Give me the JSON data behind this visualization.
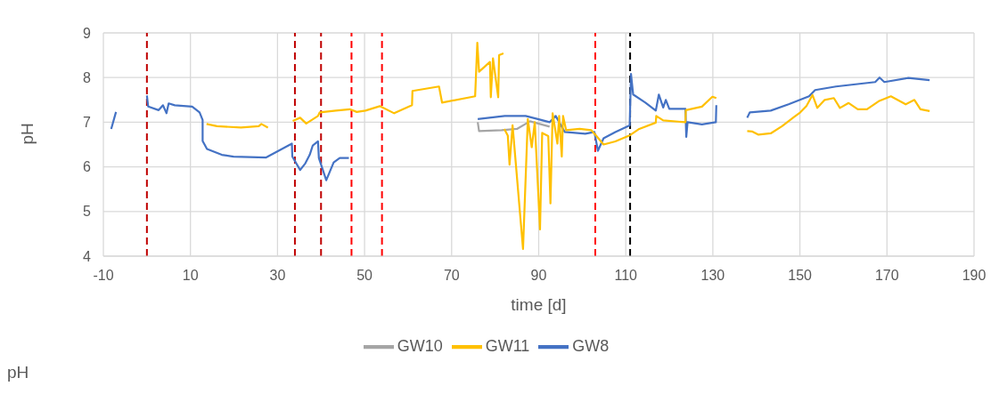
{
  "chart_data": {
    "type": "line",
    "xlabel": "time [d]",
    "ylabel": "pH",
    "xlim": [
      -10,
      190
    ],
    "xticks": [
      -10,
      10,
      30,
      50,
      70,
      90,
      110,
      130,
      150,
      170,
      190
    ],
    "ylim": [
      4,
      9
    ],
    "yticks": [
      4,
      5,
      6,
      7,
      8,
      9
    ],
    "grid": true,
    "legend": "bottom",
    "marker": "none",
    "line_style": "solid",
    "annotations": [
      "pH"
    ],
    "ref_lines": [
      {
        "axis": "x",
        "value": 0,
        "color": "#c00000",
        "line_style": "dashed"
      },
      {
        "axis": "x",
        "value": 34,
        "color": "#c00000",
        "line_style": "dashed"
      },
      {
        "axis": "x",
        "value": 40,
        "color": "#c00000",
        "line_style": "dashed"
      },
      {
        "axis": "x",
        "value": 47,
        "color": "#ff0000",
        "line_style": "dashed"
      },
      {
        "axis": "x",
        "value": 54,
        "color": "#ff0000",
        "line_style": "dashed"
      },
      {
        "axis": "x",
        "value": 103,
        "color": "#ff0000",
        "line_style": "dashed"
      },
      {
        "axis": "x",
        "value": 111,
        "color": "#000000",
        "line_style": "dashed"
      }
    ],
    "series": [
      {
        "name": "GW8",
        "color": "#4472c4",
        "x": [
          -8.2,
          -7.1,
          -4,
          0,
          0.3,
          2.7,
          3.7,
          4.5,
          5,
          6.4,
          10.4,
          12.1,
          12.8,
          12.8,
          13.8,
          17.2,
          19.9,
          27.4,
          33.3,
          33.4,
          35.2,
          36.4,
          37.4,
          38.1,
          39.3,
          39.5,
          41.2,
          42.9,
          44.3,
          46.4,
          60,
          76,
          82.2,
          87,
          89.8,
          92.5,
          93.9,
          96,
          100.7,
          102.8,
          103.6,
          104.9,
          107.6,
          110.9,
          111.2,
          111.7,
          114.5,
          116.9,
          117.6,
          118.6,
          119.2,
          120,
          123.7,
          123.9,
          124.2,
          127.5,
          130.7,
          130.8,
          134,
          137.9,
          138.5,
          143.3,
          147.4,
          152.1,
          153.5,
          158.3,
          167.3,
          168.3,
          169.4,
          174.9,
          179.8
        ],
        "values": [
          6.85,
          7.23,
          null,
          7.6,
          7.35,
          7.27,
          7.38,
          7.2,
          7.42,
          7.38,
          7.35,
          7.22,
          7.05,
          6.58,
          6.4,
          6.27,
          6.23,
          6.21,
          6.52,
          6.23,
          5.93,
          6.08,
          6.27,
          6.48,
          6.57,
          6.2,
          5.7,
          6.1,
          6.2,
          6.2,
          null,
          7.07,
          7.14,
          7.14,
          7.07,
          7,
          7.14,
          6.78,
          6.74,
          6.78,
          6.36,
          6.64,
          6.78,
          6.93,
          8.08,
          7.62,
          7.44,
          7.26,
          7.62,
          7.33,
          7.5,
          7.3,
          7.3,
          6.67,
          7,
          6.95,
          7,
          7.38,
          null,
          7.1,
          7.22,
          7.26,
          7.4,
          7.58,
          7.72,
          7.8,
          7.9,
          8,
          7.9,
          7.99,
          7.94
        ]
      },
      {
        "name": "GW10",
        "color": "#a5a5a5",
        "x": [
          76,
          76.3,
          81.5,
          85,
          88,
          92.5
        ],
        "values": [
          7,
          6.8,
          6.82,
          6.85,
          7.02,
          6.9
        ]
      },
      {
        "name": "GW11",
        "color": "#ffc000",
        "x": [
          13.7,
          16.1,
          21.6,
          25.7,
          26.3,
          27.8,
          30,
          33.5,
          35.2,
          36.6,
          39.3,
          39.7,
          43.4,
          46.6,
          48.2,
          50.2,
          53.5,
          56.8,
          60.9,
          61,
          67.1,
          67.8,
          75.4,
          75.9,
          76.3,
          78.8,
          79,
          79.5,
          80.7,
          80.9,
          81.9,
          82,
          82.1,
          82.9,
          83.3,
          84,
          86.4,
          87.5,
          88.4,
          89.1,
          90.3,
          90.8,
          92.2,
          92.7,
          93.2,
          94.3,
          94.7,
          95.3,
          95.6,
          96.3,
          99.4,
          102.1,
          103.1,
          104.9,
          107.6,
          111,
          113.1,
          116.9,
          117,
          118.6,
          123.7,
          123.8,
          127.5,
          129.9,
          130.8,
          134,
          137.9,
          139.1,
          140.5,
          143.3,
          145.9,
          148.7,
          150.1,
          151.5,
          152.9,
          154,
          155.7,
          157.8,
          159.2,
          161.2,
          163.3,
          165.4,
          168.1,
          170.9,
          174.3,
          176.3,
          177.7,
          179.8
        ],
        "values": [
          6.96,
          6.91,
          6.88,
          6.91,
          6.96,
          6.88,
          null,
          7.03,
          7.1,
          6.97,
          7.14,
          7.22,
          7.26,
          7.29,
          7.23,
          7.26,
          7.36,
          7.2,
          7.38,
          7.7,
          7.8,
          7.44,
          7.58,
          8.78,
          8.13,
          8.35,
          7.56,
          8.43,
          7.56,
          8.5,
          8.54,
          null,
          6.85,
          6.7,
          6.05,
          6.93,
          4.16,
          7.07,
          6.44,
          7,
          4.6,
          6.76,
          6.69,
          5.18,
          7.2,
          6.52,
          7.14,
          6.23,
          7.14,
          6.82,
          6.85,
          6.82,
          6.71,
          6.5,
          6.57,
          6.71,
          6.85,
          6.99,
          7.14,
          7.04,
          7,
          7.27,
          7.35,
          7.57,
          7.54,
          null,
          6.8,
          6.79,
          6.72,
          6.75,
          6.91,
          7.12,
          7.22,
          7.36,
          7.61,
          7.32,
          7.5,
          7.54,
          7.32,
          7.43,
          7.29,
          7.29,
          7.47,
          7.58,
          7.4,
          7.5,
          7.29,
          7.25
        ]
      }
    ]
  }
}
